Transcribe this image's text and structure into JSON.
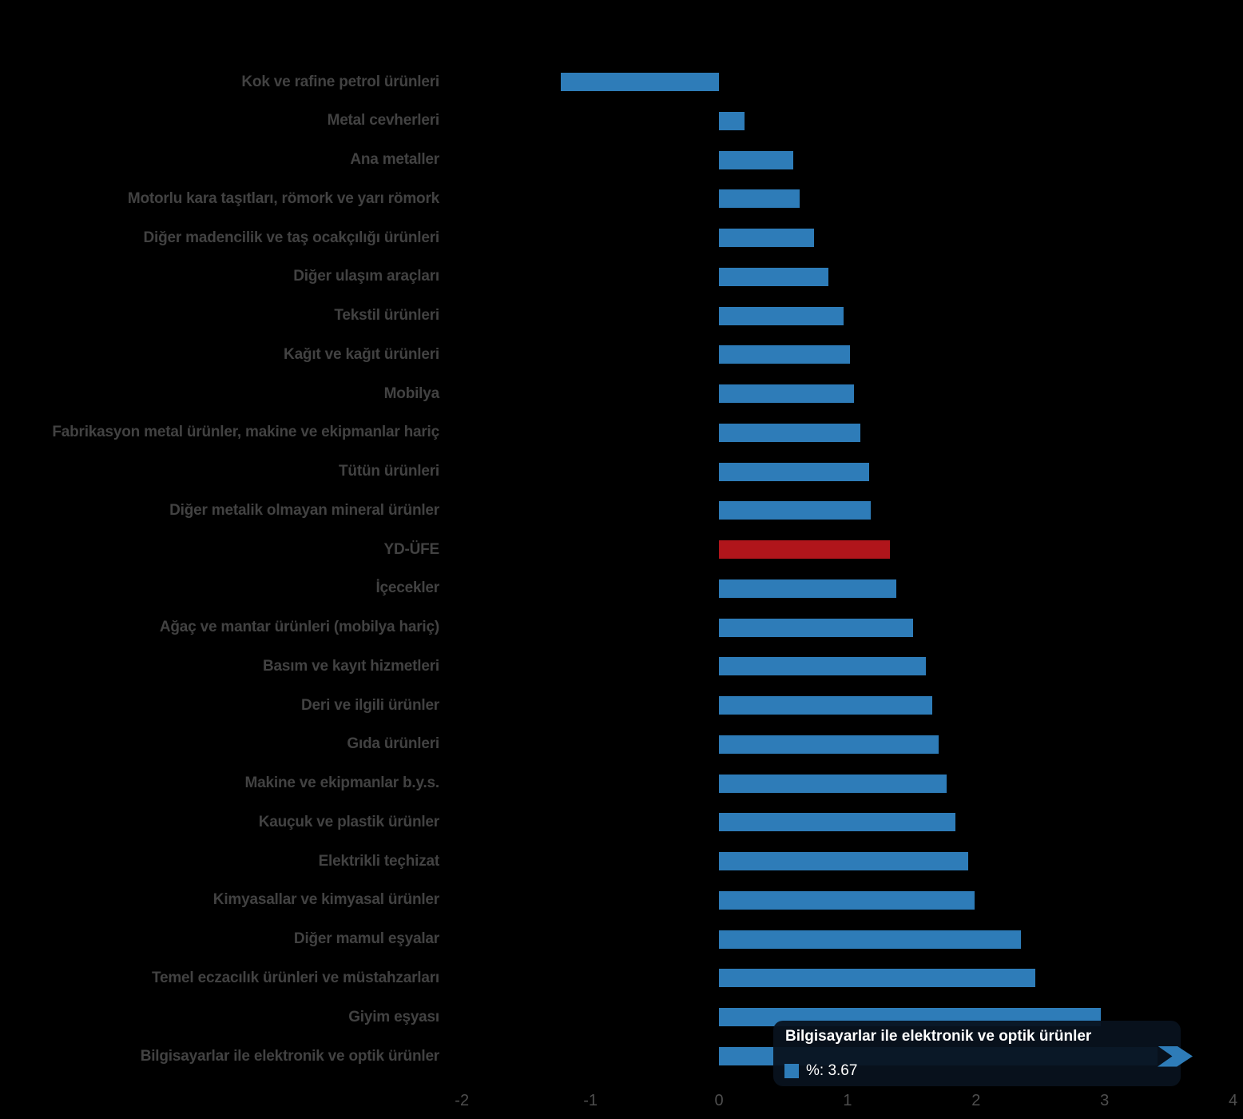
{
  "chart_data": {
    "type": "bar",
    "orientation": "horizontal",
    "title": "",
    "xlabel": "",
    "ylabel": "",
    "xlim": [
      -2,
      4
    ],
    "x_ticks": [
      -2,
      -1,
      0,
      1,
      2,
      3,
      4
    ],
    "x_tick_labels": [
      "-2",
      "-1",
      "0",
      "1",
      "2",
      "3",
      "4"
    ],
    "grid": false,
    "legend": false,
    "background_color": "#000000",
    "bar_color": "#2e7cb8",
    "categories": [
      "Kok ve rafine petrol ürünleri",
      "Metal cevherleri",
      "Ana metaller",
      "Motorlu kara taşıtları, römork ve yarı römork",
      "Diğer madencilik ve taş ocakçılığı ürünleri",
      "Diğer ulaşım araçları",
      "Tekstil ürünleri",
      "Kağıt ve kağıt ürünleri",
      "Mobilya",
      "Fabrikasyon metal ürünler, makine ve ekipmanlar hariç",
      "Tütün ürünleri",
      "Diğer metalik olmayan mineral ürünler",
      "YD-ÜFE",
      "İçecekler",
      "Ağaç ve mantar ürünleri (mobilya hariç)",
      "Basım ve kayıt hizmetleri",
      "Deri ve ilgili ürünler",
      "Gıda ürünleri",
      "Makine ve ekipmanlar b.y.s.",
      "Kauçuk ve plastik ürünler",
      "Elektrikli teçhizat",
      "Kimyasallar ve kimyasal ürünler",
      "Diğer mamul eşyalar",
      "Temel eczacılık ürünleri ve müstahzarları",
      "Giyim eşyası",
      "Bilgisayarlar ile elektronik ve optik ürünler"
    ],
    "values": [
      -1.23,
      0.2,
      0.58,
      0.63,
      0.74,
      0.85,
      0.97,
      1.02,
      1.05,
      1.1,
      1.17,
      1.18,
      1.33,
      1.38,
      1.51,
      1.61,
      1.66,
      1.71,
      1.77,
      1.84,
      1.94,
      1.99,
      2.35,
      2.46,
      2.97,
      3.67
    ],
    "highlight": {
      "category": "YD-ÜFE",
      "index": 12,
      "color": "#b0151b"
    }
  },
  "tooltip": {
    "title": "Bilgisayarlar ile elektronik ve optik ürünler",
    "value_label": "%: 3.67",
    "value": 3.67,
    "swatch_color": "#2e7cb8",
    "category_index": 25
  }
}
